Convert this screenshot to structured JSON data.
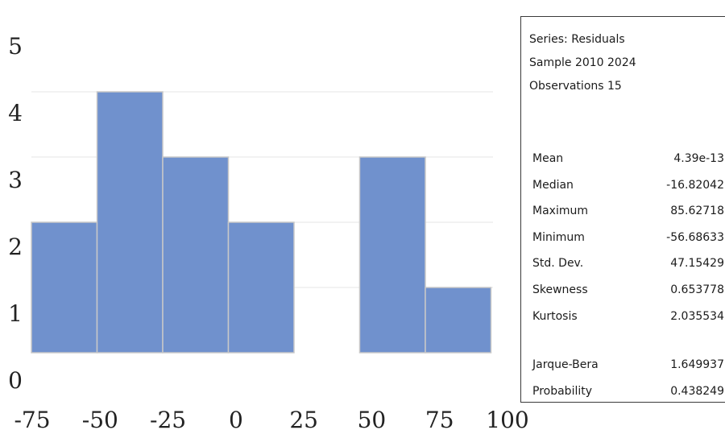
{
  "chart_data": {
    "type": "bar",
    "title": "",
    "xlabel": "",
    "ylabel": "",
    "x_ticks": [
      "-75",
      "-50",
      "-25",
      "0",
      "25",
      "50",
      "75",
      "100"
    ],
    "y_ticks": [
      "0",
      "1",
      "2",
      "3",
      "4",
      "5"
    ],
    "xlim": [
      -75,
      100
    ],
    "ylim": [
      0,
      5
    ],
    "bin_edges": [
      -75,
      -50,
      -25,
      0,
      25,
      50,
      75,
      100
    ],
    "values": [
      2,
      4,
      3,
      2,
      0,
      3,
      1
    ],
    "grid": true,
    "colors": {
      "bar_fill": "#7091CD",
      "bar_edge": "#C8C8C8",
      "grid": "#E6E6E6"
    }
  },
  "stats_panel": {
    "series": "Series: Residuals",
    "sample": "Sample 2010 2024",
    "observations": "Observations 15",
    "descriptive": [
      {
        "label": "Mean",
        "value": "4.39e-13"
      },
      {
        "label": "Median",
        "value": "-16.82042"
      },
      {
        "label": "Maximum",
        "value": "85.62718"
      },
      {
        "label": "Minimum",
        "value": "-56.68633"
      },
      {
        "label": "Std. Dev.",
        "value": "47.15429"
      },
      {
        "label": "Skewness",
        "value": "0.653778"
      },
      {
        "label": "Kurtosis",
        "value": "2.035534"
      }
    ],
    "tests": [
      {
        "label": "Jarque-Bera",
        "value": "1.649937"
      },
      {
        "label": "Probability",
        "value": "0.438249"
      }
    ]
  }
}
